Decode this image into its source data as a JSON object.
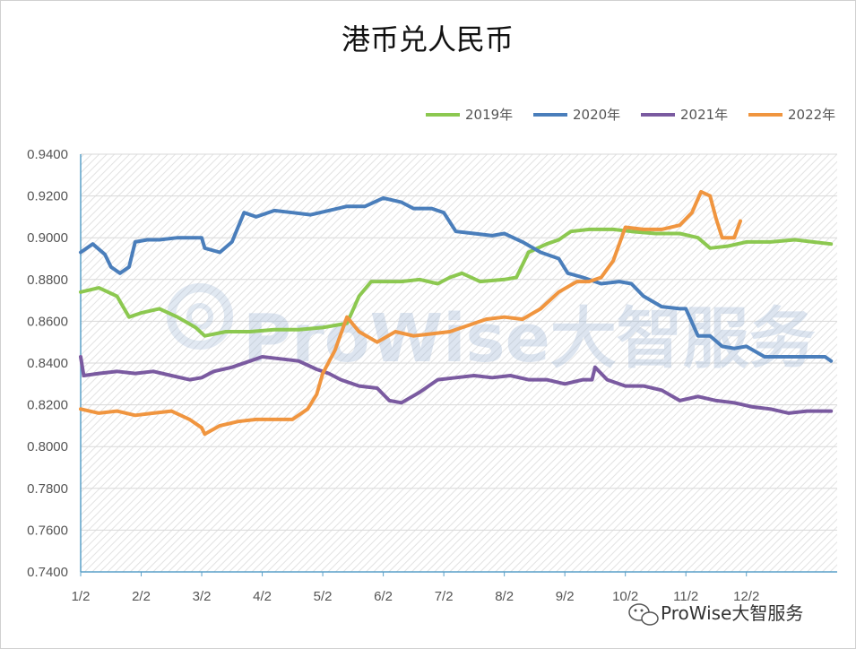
{
  "watermark": {
    "text": "ProWise大智服务"
  },
  "credit": {
    "text": "ProWise大智服务"
  },
  "chart_data": {
    "type": "line",
    "title": "港币兑人民币",
    "xlabel": "",
    "ylabel": "",
    "ylim": [
      0.74,
      0.94
    ],
    "y_ticks": [
      "0.9400",
      "0.9200",
      "0.9000",
      "0.8800",
      "0.8600",
      "0.8400",
      "0.8200",
      "0.8000",
      "0.7800",
      "0.7600",
      "0.7400"
    ],
    "x_ticks": [
      "1/2",
      "2/2",
      "3/2",
      "4/2",
      "5/2",
      "6/2",
      "7/2",
      "8/2",
      "9/2",
      "10/2",
      "11/2",
      "12/2"
    ],
    "grid": true,
    "legend_position": "top-right",
    "series": [
      {
        "name": "2019年",
        "color": "#8cc850",
        "points": [
          [
            1,
            0.874
          ],
          [
            1.3,
            0.876
          ],
          [
            1.6,
            0.872
          ],
          [
            1.8,
            0.862
          ],
          [
            2,
            0.864
          ],
          [
            2.3,
            0.866
          ],
          [
            2.6,
            0.862
          ],
          [
            2.9,
            0.857
          ],
          [
            3.05,
            0.853
          ],
          [
            3.4,
            0.855
          ],
          [
            3.8,
            0.855
          ],
          [
            4.2,
            0.856
          ],
          [
            4.6,
            0.856
          ],
          [
            5.0,
            0.857
          ],
          [
            5.4,
            0.859
          ],
          [
            5.6,
            0.872
          ],
          [
            5.8,
            0.879
          ],
          [
            6.0,
            0.879
          ],
          [
            6.3,
            0.879
          ],
          [
            6.6,
            0.88
          ],
          [
            6.9,
            0.878
          ],
          [
            7.1,
            0.881
          ],
          [
            7.3,
            0.883
          ],
          [
            7.6,
            0.879
          ],
          [
            8.0,
            0.88
          ],
          [
            8.2,
            0.881
          ],
          [
            8.4,
            0.893
          ],
          [
            8.7,
            0.897
          ],
          [
            8.9,
            0.899
          ],
          [
            9.1,
            0.903
          ],
          [
            9.4,
            0.904
          ],
          [
            9.8,
            0.904
          ],
          [
            10.1,
            0.903
          ],
          [
            10.5,
            0.902
          ],
          [
            10.9,
            0.902
          ],
          [
            11.2,
            0.9
          ],
          [
            11.4,
            0.895
          ],
          [
            11.7,
            0.896
          ],
          [
            12.0,
            0.898
          ],
          [
            12.4,
            0.898
          ],
          [
            12.8,
            0.899
          ],
          [
            13.1,
            0.898
          ],
          [
            13.4,
            0.897
          ]
        ]
      },
      {
        "name": "2020年",
        "color": "#4a7ebb",
        "points": [
          [
            1,
            0.893
          ],
          [
            1.2,
            0.897
          ],
          [
            1.4,
            0.892
          ],
          [
            1.5,
            0.886
          ],
          [
            1.65,
            0.883
          ],
          [
            1.8,
            0.886
          ],
          [
            1.9,
            0.898
          ],
          [
            2.1,
            0.899
          ],
          [
            2.3,
            0.899
          ],
          [
            2.6,
            0.9
          ],
          [
            3.0,
            0.9
          ],
          [
            3.05,
            0.895
          ],
          [
            3.3,
            0.893
          ],
          [
            3.5,
            0.898
          ],
          [
            3.7,
            0.912
          ],
          [
            3.9,
            0.91
          ],
          [
            4.2,
            0.913
          ],
          [
            4.5,
            0.912
          ],
          [
            4.8,
            0.911
          ],
          [
            5.1,
            0.913
          ],
          [
            5.4,
            0.915
          ],
          [
            5.7,
            0.915
          ],
          [
            6.0,
            0.919
          ],
          [
            6.3,
            0.917
          ],
          [
            6.5,
            0.914
          ],
          [
            6.8,
            0.914
          ],
          [
            7.0,
            0.912
          ],
          [
            7.2,
            0.903
          ],
          [
            7.5,
            0.902
          ],
          [
            7.8,
            0.901
          ],
          [
            8.0,
            0.902
          ],
          [
            8.3,
            0.898
          ],
          [
            8.6,
            0.893
          ],
          [
            8.9,
            0.89
          ],
          [
            9.05,
            0.883
          ],
          [
            9.3,
            0.881
          ],
          [
            9.6,
            0.878
          ],
          [
            9.9,
            0.879
          ],
          [
            10.1,
            0.878
          ],
          [
            10.3,
            0.872
          ],
          [
            10.6,
            0.867
          ],
          [
            10.9,
            0.866
          ],
          [
            11.0,
            0.866
          ],
          [
            11.2,
            0.853
          ],
          [
            11.4,
            0.853
          ],
          [
            11.6,
            0.848
          ],
          [
            11.8,
            0.847
          ],
          [
            12.0,
            0.848
          ],
          [
            12.3,
            0.843
          ],
          [
            12.6,
            0.843
          ],
          [
            13.0,
            0.843
          ],
          [
            13.3,
            0.843
          ],
          [
            13.4,
            0.841
          ]
        ]
      },
      {
        "name": "2021年",
        "color": "#7a5aa0",
        "points": [
          [
            1,
            0.843
          ],
          [
            1.05,
            0.834
          ],
          [
            1.3,
            0.835
          ],
          [
            1.6,
            0.836
          ],
          [
            1.9,
            0.835
          ],
          [
            2.2,
            0.836
          ],
          [
            2.5,
            0.834
          ],
          [
            2.8,
            0.832
          ],
          [
            3.0,
            0.833
          ],
          [
            3.2,
            0.836
          ],
          [
            3.5,
            0.838
          ],
          [
            3.8,
            0.841
          ],
          [
            4.0,
            0.843
          ],
          [
            4.3,
            0.842
          ],
          [
            4.6,
            0.841
          ],
          [
            4.9,
            0.837
          ],
          [
            5.1,
            0.835
          ],
          [
            5.3,
            0.832
          ],
          [
            5.6,
            0.829
          ],
          [
            5.9,
            0.828
          ],
          [
            6.1,
            0.822
          ],
          [
            6.3,
            0.821
          ],
          [
            6.6,
            0.826
          ],
          [
            6.9,
            0.832
          ],
          [
            7.2,
            0.833
          ],
          [
            7.5,
            0.834
          ],
          [
            7.8,
            0.833
          ],
          [
            8.1,
            0.834
          ],
          [
            8.4,
            0.832
          ],
          [
            8.7,
            0.832
          ],
          [
            9.0,
            0.83
          ],
          [
            9.3,
            0.832
          ],
          [
            9.45,
            0.832
          ],
          [
            9.5,
            0.838
          ],
          [
            9.7,
            0.832
          ],
          [
            10.0,
            0.829
          ],
          [
            10.3,
            0.829
          ],
          [
            10.6,
            0.827
          ],
          [
            10.9,
            0.822
          ],
          [
            11.2,
            0.824
          ],
          [
            11.5,
            0.822
          ],
          [
            11.8,
            0.821
          ],
          [
            12.1,
            0.819
          ],
          [
            12.4,
            0.818
          ],
          [
            12.7,
            0.816
          ],
          [
            13.0,
            0.817
          ],
          [
            13.3,
            0.817
          ],
          [
            13.4,
            0.817
          ]
        ]
      },
      {
        "name": "2022年",
        "color": "#f0953f",
        "points": [
          [
            1,
            0.818
          ],
          [
            1.3,
            0.816
          ],
          [
            1.6,
            0.817
          ],
          [
            1.9,
            0.815
          ],
          [
            2.2,
            0.816
          ],
          [
            2.5,
            0.817
          ],
          [
            2.8,
            0.813
          ],
          [
            3.0,
            0.809
          ],
          [
            3.05,
            0.806
          ],
          [
            3.3,
            0.81
          ],
          [
            3.6,
            0.812
          ],
          [
            3.9,
            0.813
          ],
          [
            4.2,
            0.813
          ],
          [
            4.5,
            0.813
          ],
          [
            4.75,
            0.818
          ],
          [
            4.9,
            0.825
          ],
          [
            5.0,
            0.835
          ],
          [
            5.2,
            0.846
          ],
          [
            5.4,
            0.862
          ],
          [
            5.6,
            0.855
          ],
          [
            5.9,
            0.85
          ],
          [
            6.2,
            0.855
          ],
          [
            6.5,
            0.853
          ],
          [
            6.8,
            0.854
          ],
          [
            7.1,
            0.855
          ],
          [
            7.4,
            0.858
          ],
          [
            7.7,
            0.861
          ],
          [
            8.0,
            0.862
          ],
          [
            8.3,
            0.861
          ],
          [
            8.6,
            0.866
          ],
          [
            8.9,
            0.874
          ],
          [
            9.2,
            0.879
          ],
          [
            9.4,
            0.879
          ],
          [
            9.6,
            0.881
          ],
          [
            9.8,
            0.889
          ],
          [
            10.0,
            0.905
          ],
          [
            10.3,
            0.904
          ],
          [
            10.6,
            0.904
          ],
          [
            10.9,
            0.906
          ],
          [
            11.1,
            0.912
          ],
          [
            11.25,
            0.922
          ],
          [
            11.4,
            0.92
          ],
          [
            11.5,
            0.909
          ],
          [
            11.6,
            0.9
          ],
          [
            11.8,
            0.9
          ],
          [
            11.9,
            0.908
          ]
        ]
      }
    ]
  }
}
